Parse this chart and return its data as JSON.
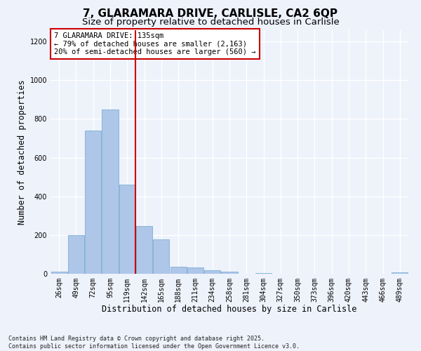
{
  "title": "7, GLARAMARA DRIVE, CARLISLE, CA2 6QP",
  "subtitle": "Size of property relative to detached houses in Carlisle",
  "xlabel": "Distribution of detached houses by size in Carlisle",
  "ylabel": "Number of detached properties",
  "categories": [
    "26sqm",
    "49sqm",
    "72sqm",
    "95sqm",
    "119sqm",
    "142sqm",
    "165sqm",
    "188sqm",
    "211sqm",
    "234sqm",
    "258sqm",
    "281sqm",
    "304sqm",
    "327sqm",
    "350sqm",
    "373sqm",
    "396sqm",
    "420sqm",
    "443sqm",
    "466sqm",
    "489sqm"
  ],
  "values": [
    10,
    200,
    740,
    850,
    460,
    248,
    178,
    38,
    32,
    18,
    10,
    0,
    4,
    0,
    0,
    0,
    0,
    0,
    0,
    0,
    8
  ],
  "bar_color": "#aec6e8",
  "bar_edgecolor": "#7bafd4",
  "vline_x_idx": 4,
  "vline_color": "#cc0000",
  "annotation_text": "7 GLARAMARA DRIVE: 135sqm\n← 79% of detached houses are smaller (2,163)\n20% of semi-detached houses are larger (560) →",
  "annotation_box_edgecolor": "#cc0000",
  "annotation_box_facecolor": "#ffffff",
  "ylim": [
    0,
    1260
  ],
  "yticks": [
    0,
    200,
    400,
    600,
    800,
    1000,
    1200
  ],
  "background_color": "#eef2fb",
  "grid_color": "#ffffff",
  "footer": "Contains HM Land Registry data © Crown copyright and database right 2025.\nContains public sector information licensed under the Open Government Licence v3.0.",
  "title_fontsize": 11,
  "subtitle_fontsize": 9.5,
  "xlabel_fontsize": 8.5,
  "ylabel_fontsize": 8.5,
  "tick_fontsize": 7,
  "annotation_fontsize": 7.5,
  "footer_fontsize": 6
}
